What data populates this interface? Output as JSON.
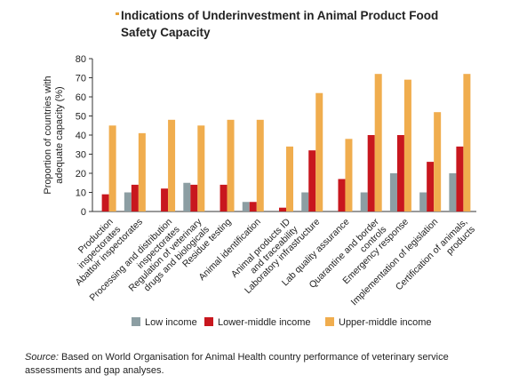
{
  "title": {
    "line1": "Indications of Underinvestment in Animal Product Food",
    "line2": "Safety Capacity"
  },
  "source": {
    "label": "Source:",
    "text": " Based on World Organisation for Animal Health country performance of veterinary service assessments and gap analyses."
  },
  "colors": {
    "low": "#8c9ea3",
    "lower_middle": "#c8171e",
    "upper_middle": "#f0ad4e"
  },
  "chart_data": {
    "type": "bar",
    "title": "Indications of Underinvestment in Animal Product Food Safety Capacity",
    "ylabel": "Proportion of countries with adequate capacity (%)",
    "ylabel_lines": [
      "Proportion of countries with",
      "adequate capacity (%)"
    ],
    "ylim": [
      0,
      80
    ],
    "yticks": [
      0,
      10,
      20,
      30,
      40,
      50,
      60,
      70,
      80
    ],
    "grid": false,
    "legend_position": "bottom",
    "categories": [
      [
        "Production",
        "inspectorates"
      ],
      [
        "Abattoir inspectorates"
      ],
      [
        "Processing and distribution",
        "inspectorates"
      ],
      [
        "Regulation of veterinary",
        "drugs and biologicals"
      ],
      [
        "Residue testing"
      ],
      [
        "Animal identification"
      ],
      [
        "Animal products ID",
        "and traceability"
      ],
      [
        "Laboratory infrastructure"
      ],
      [
        "Lab quality assurance"
      ],
      [
        "Quarantine and border",
        "controls"
      ],
      [
        "Emergency response"
      ],
      [
        "Implementation of legislation"
      ],
      [
        "Certification of animals,",
        "products"
      ]
    ],
    "series": [
      {
        "name": "Low income",
        "color": "#8c9ea3",
        "values": [
          0,
          10,
          0,
          15,
          0,
          5,
          0,
          10,
          0,
          10,
          20,
          10,
          20
        ]
      },
      {
        "name": "Lower-middle income",
        "color": "#c8171e",
        "values": [
          9,
          14,
          12,
          14,
          14,
          5,
          2,
          32,
          17,
          40,
          40,
          26,
          34
        ]
      },
      {
        "name": "Upper-middle income",
        "color": "#f0ad4e",
        "values": [
          45,
          41,
          48,
          45,
          48,
          48,
          34,
          62,
          38,
          72,
          69,
          52,
          72
        ]
      }
    ]
  }
}
